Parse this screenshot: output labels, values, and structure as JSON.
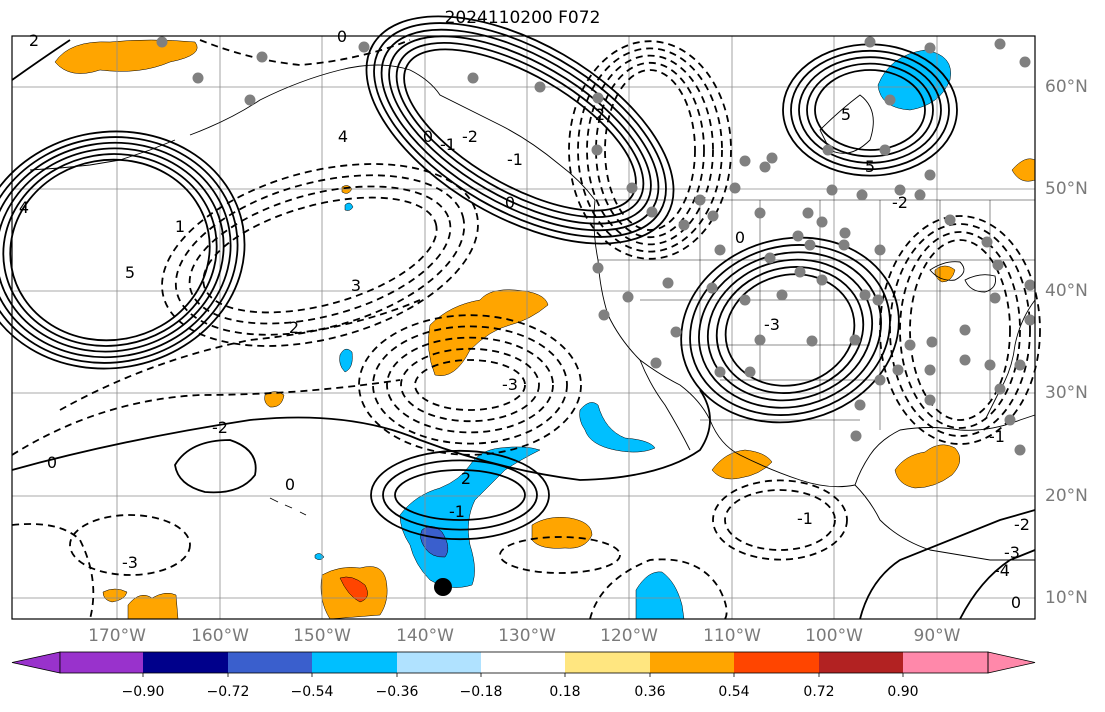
{
  "title": "2024110200 F072",
  "lon_labels": [
    "170°W",
    "160°W",
    "150°W",
    "140°W",
    "130°W",
    "120°W",
    "110°W",
    "100°W",
    "90°W"
  ],
  "lat_labels": [
    "60°N",
    "50°N",
    "40°N",
    "30°N",
    "20°N",
    "10°N"
  ],
  "colorbar": {
    "colors": [
      "#9932cc",
      "#00008b",
      "#3a5fcd",
      "#00bfff",
      "#b0e2ff",
      "#ffffff",
      "#ffe680",
      "#ffa500",
      "#ff4500",
      "#b22222",
      "#ff88aa"
    ],
    "tick_labels": [
      "−0.90",
      "−0.72",
      "−0.54",
      "−0.36",
      "−0.18",
      "0.18",
      "0.36",
      "0.54",
      "0.72",
      "0.90"
    ]
  },
  "contour_labels": [
    "2",
    "0",
    "4",
    "5",
    "4",
    "3",
    "2",
    "-3",
    "-2",
    "0",
    "0",
    "-1",
    "-2",
    "-1",
    "0",
    "0",
    "-3",
    "-4",
    "-3",
    "-2",
    "-1",
    "0",
    "-3",
    "5",
    "5",
    "-2",
    "-1",
    "2",
    "-1",
    "0",
    "1",
    "2"
  ],
  "station_marker": "filled-black-circle"
}
